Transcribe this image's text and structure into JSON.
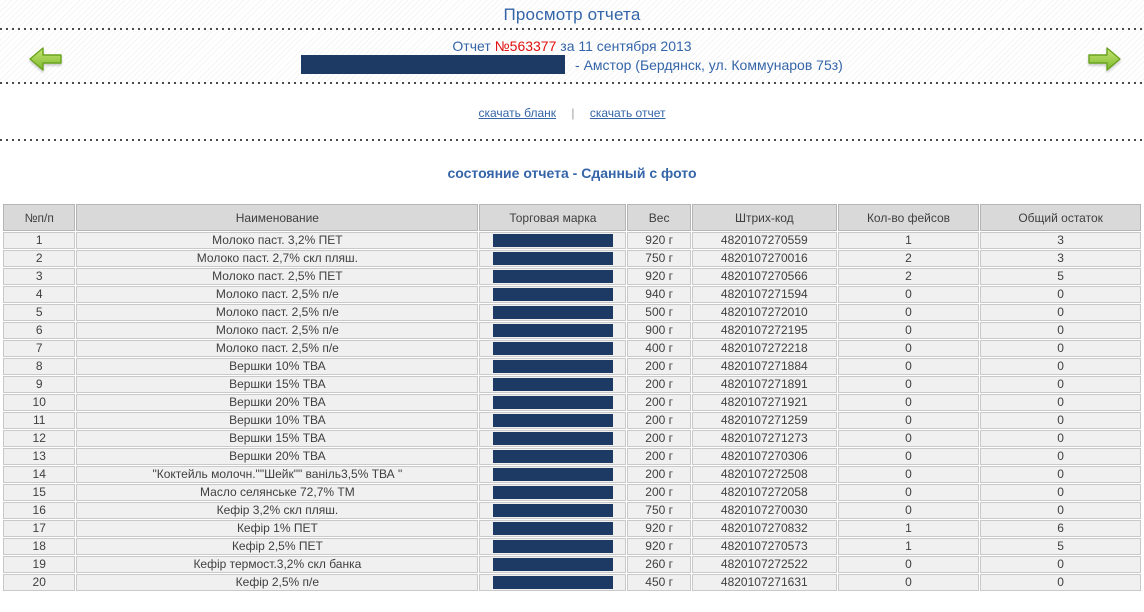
{
  "page": {
    "title": "Просмотр отчета"
  },
  "report": {
    "label": "Отчет",
    "number": "№563377",
    "date_text": "за 11 сентября 2013",
    "store_text": "- Амстор (Бердянск, ул. Коммунаров 75з)"
  },
  "links": {
    "download_blank": "скачать бланк",
    "divider": "|",
    "download_report": "скачать отчет"
  },
  "status": {
    "text": "состояние отчета - Сданный с фото"
  },
  "icons": {
    "prev": "arrow-left-green",
    "next": "arrow-right-green"
  },
  "colors": {
    "accent_blue": "#3565a8",
    "report_number_red": "#e01010",
    "redaction_navy": "#1c3a63",
    "arrow_green": "#7cb82f",
    "table_header_gray": "#d9d9d9",
    "table_cell_gray": "#f0f0f0"
  },
  "table": {
    "headers": [
      "№п/п",
      "Наименование",
      "Торговая марка",
      "Вес",
      "Штрих-код",
      "Кол-во фейсов",
      "Общий остаток"
    ],
    "rows": [
      {
        "num": "1",
        "name": "Молоко паст. 3,2% ПЕТ",
        "weight": "920 г",
        "barcode": "4820107270559",
        "faces": "1",
        "stock": "3"
      },
      {
        "num": "2",
        "name": "Молоко паст. 2,7% скл пляш.",
        "weight": "750 г",
        "barcode": "4820107270016",
        "faces": "2",
        "stock": "3"
      },
      {
        "num": "3",
        "name": "Молоко паст. 2,5% ПЕТ",
        "weight": "920 г",
        "barcode": "4820107270566",
        "faces": "2",
        "stock": "5"
      },
      {
        "num": "4",
        "name": "Молоко паст. 2,5% п/е",
        "weight": "940 г",
        "barcode": "4820107271594",
        "faces": "0",
        "stock": "0"
      },
      {
        "num": "5",
        "name": "Молоко паст. 2,5% п/е",
        "weight": "500 г",
        "barcode": "4820107272010",
        "faces": "0",
        "stock": "0"
      },
      {
        "num": "6",
        "name": "Молоко паст. 2,5% п/е",
        "weight": "900 г",
        "barcode": "4820107272195",
        "faces": "0",
        "stock": "0"
      },
      {
        "num": "7",
        "name": "Молоко паст. 2,5% п/е",
        "weight": "400 г",
        "barcode": "4820107272218",
        "faces": "0",
        "stock": "0"
      },
      {
        "num": "8",
        "name": "Вершки 10% ТВА",
        "weight": "200 г",
        "barcode": "4820107271884",
        "faces": "0",
        "stock": "0"
      },
      {
        "num": "9",
        "name": "Вершки 15% ТВА",
        "weight": "200 г",
        "barcode": "4820107271891",
        "faces": "0",
        "stock": "0"
      },
      {
        "num": "10",
        "name": "Вершки 20% ТВА",
        "weight": "200 г",
        "barcode": "4820107271921",
        "faces": "0",
        "stock": "0"
      },
      {
        "num": "11",
        "name": "Вершки 10% ТВА",
        "weight": "200 г",
        "barcode": "4820107271259",
        "faces": "0",
        "stock": "0"
      },
      {
        "num": "12",
        "name": "Вершки 15% ТВА",
        "weight": "200 г",
        "barcode": "4820107271273",
        "faces": "0",
        "stock": "0"
      },
      {
        "num": "13",
        "name": "Вершки 20% ТВА",
        "weight": "200 г",
        "barcode": "4820107270306",
        "faces": "0",
        "stock": "0"
      },
      {
        "num": "14",
        "name": "\"Коктейль молочн.\"\"Шейк\"\" ваніль3,5% ТВА \"",
        "weight": "200 г",
        "barcode": "4820107272508",
        "faces": "0",
        "stock": "0"
      },
      {
        "num": "15",
        "name": "Масло селянське 72,7% ТМ",
        "weight": "200 г",
        "barcode": "4820107272058",
        "faces": "0",
        "stock": "0"
      },
      {
        "num": "16",
        "name": "Кефір 3,2% скл пляш.",
        "weight": "750 г",
        "barcode": "4820107270030",
        "faces": "0",
        "stock": "0"
      },
      {
        "num": "17",
        "name": "Кефір 1% ПЕТ",
        "weight": "920 г",
        "barcode": "4820107270832",
        "faces": "1",
        "stock": "6"
      },
      {
        "num": "18",
        "name": "Кефір 2,5% ПЕТ",
        "weight": "920 г",
        "barcode": "4820107270573",
        "faces": "1",
        "stock": "5"
      },
      {
        "num": "19",
        "name": "Кефір термост.3,2% скл банка",
        "weight": "260 г",
        "barcode": "4820107272522",
        "faces": "0",
        "stock": "0"
      },
      {
        "num": "20",
        "name": "Кефір 2,5% п/е",
        "weight": "450 г",
        "barcode": "4820107271631",
        "faces": "0",
        "stock": "0"
      }
    ]
  }
}
